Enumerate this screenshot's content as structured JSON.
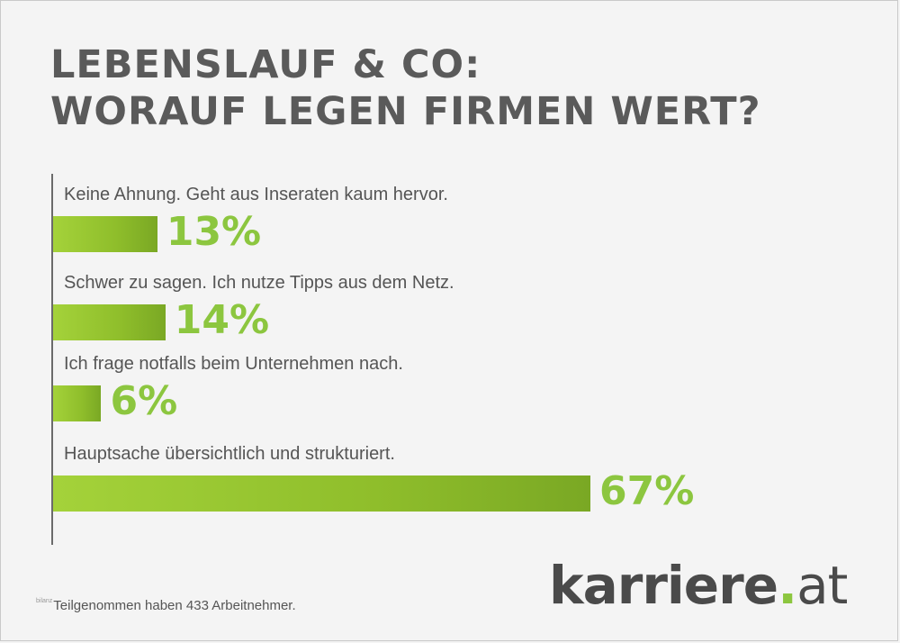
{
  "title_lines": [
    "LEBENSLAUF & CO:",
    "WORAUF LEGEN FIRMEN WERT?"
  ],
  "chart_data": {
    "type": "bar",
    "orientation": "horizontal",
    "title": "LEBENSLAUF & CO: WORAUF LEGEN FIRMEN WERT?",
    "categories": [
      "Keine Ahnung. Geht aus Inseraten kaum hervor.",
      "Schwer zu sagen. Ich nutze Tipps aus dem Netz.",
      "Ich frage notfalls beim Unternehmen nach.",
      "Hauptsache übersichtlich und strukturiert."
    ],
    "values": [
      13,
      14,
      6,
      67
    ],
    "value_labels": [
      "13%",
      "14%",
      "6%",
      "67%"
    ],
    "unit": "%",
    "xlim": [
      0,
      100
    ],
    "grid": false,
    "legend": "none",
    "bar_color": "#8fbe2b",
    "label_color": "#8cc63f"
  },
  "footnote": {
    "tiny": "bilanz",
    "text": "Teilgenommen haben 433 Arbeitnehmer."
  },
  "logo": {
    "name": "karriere",
    "dot": ".",
    "suffix": "at"
  }
}
